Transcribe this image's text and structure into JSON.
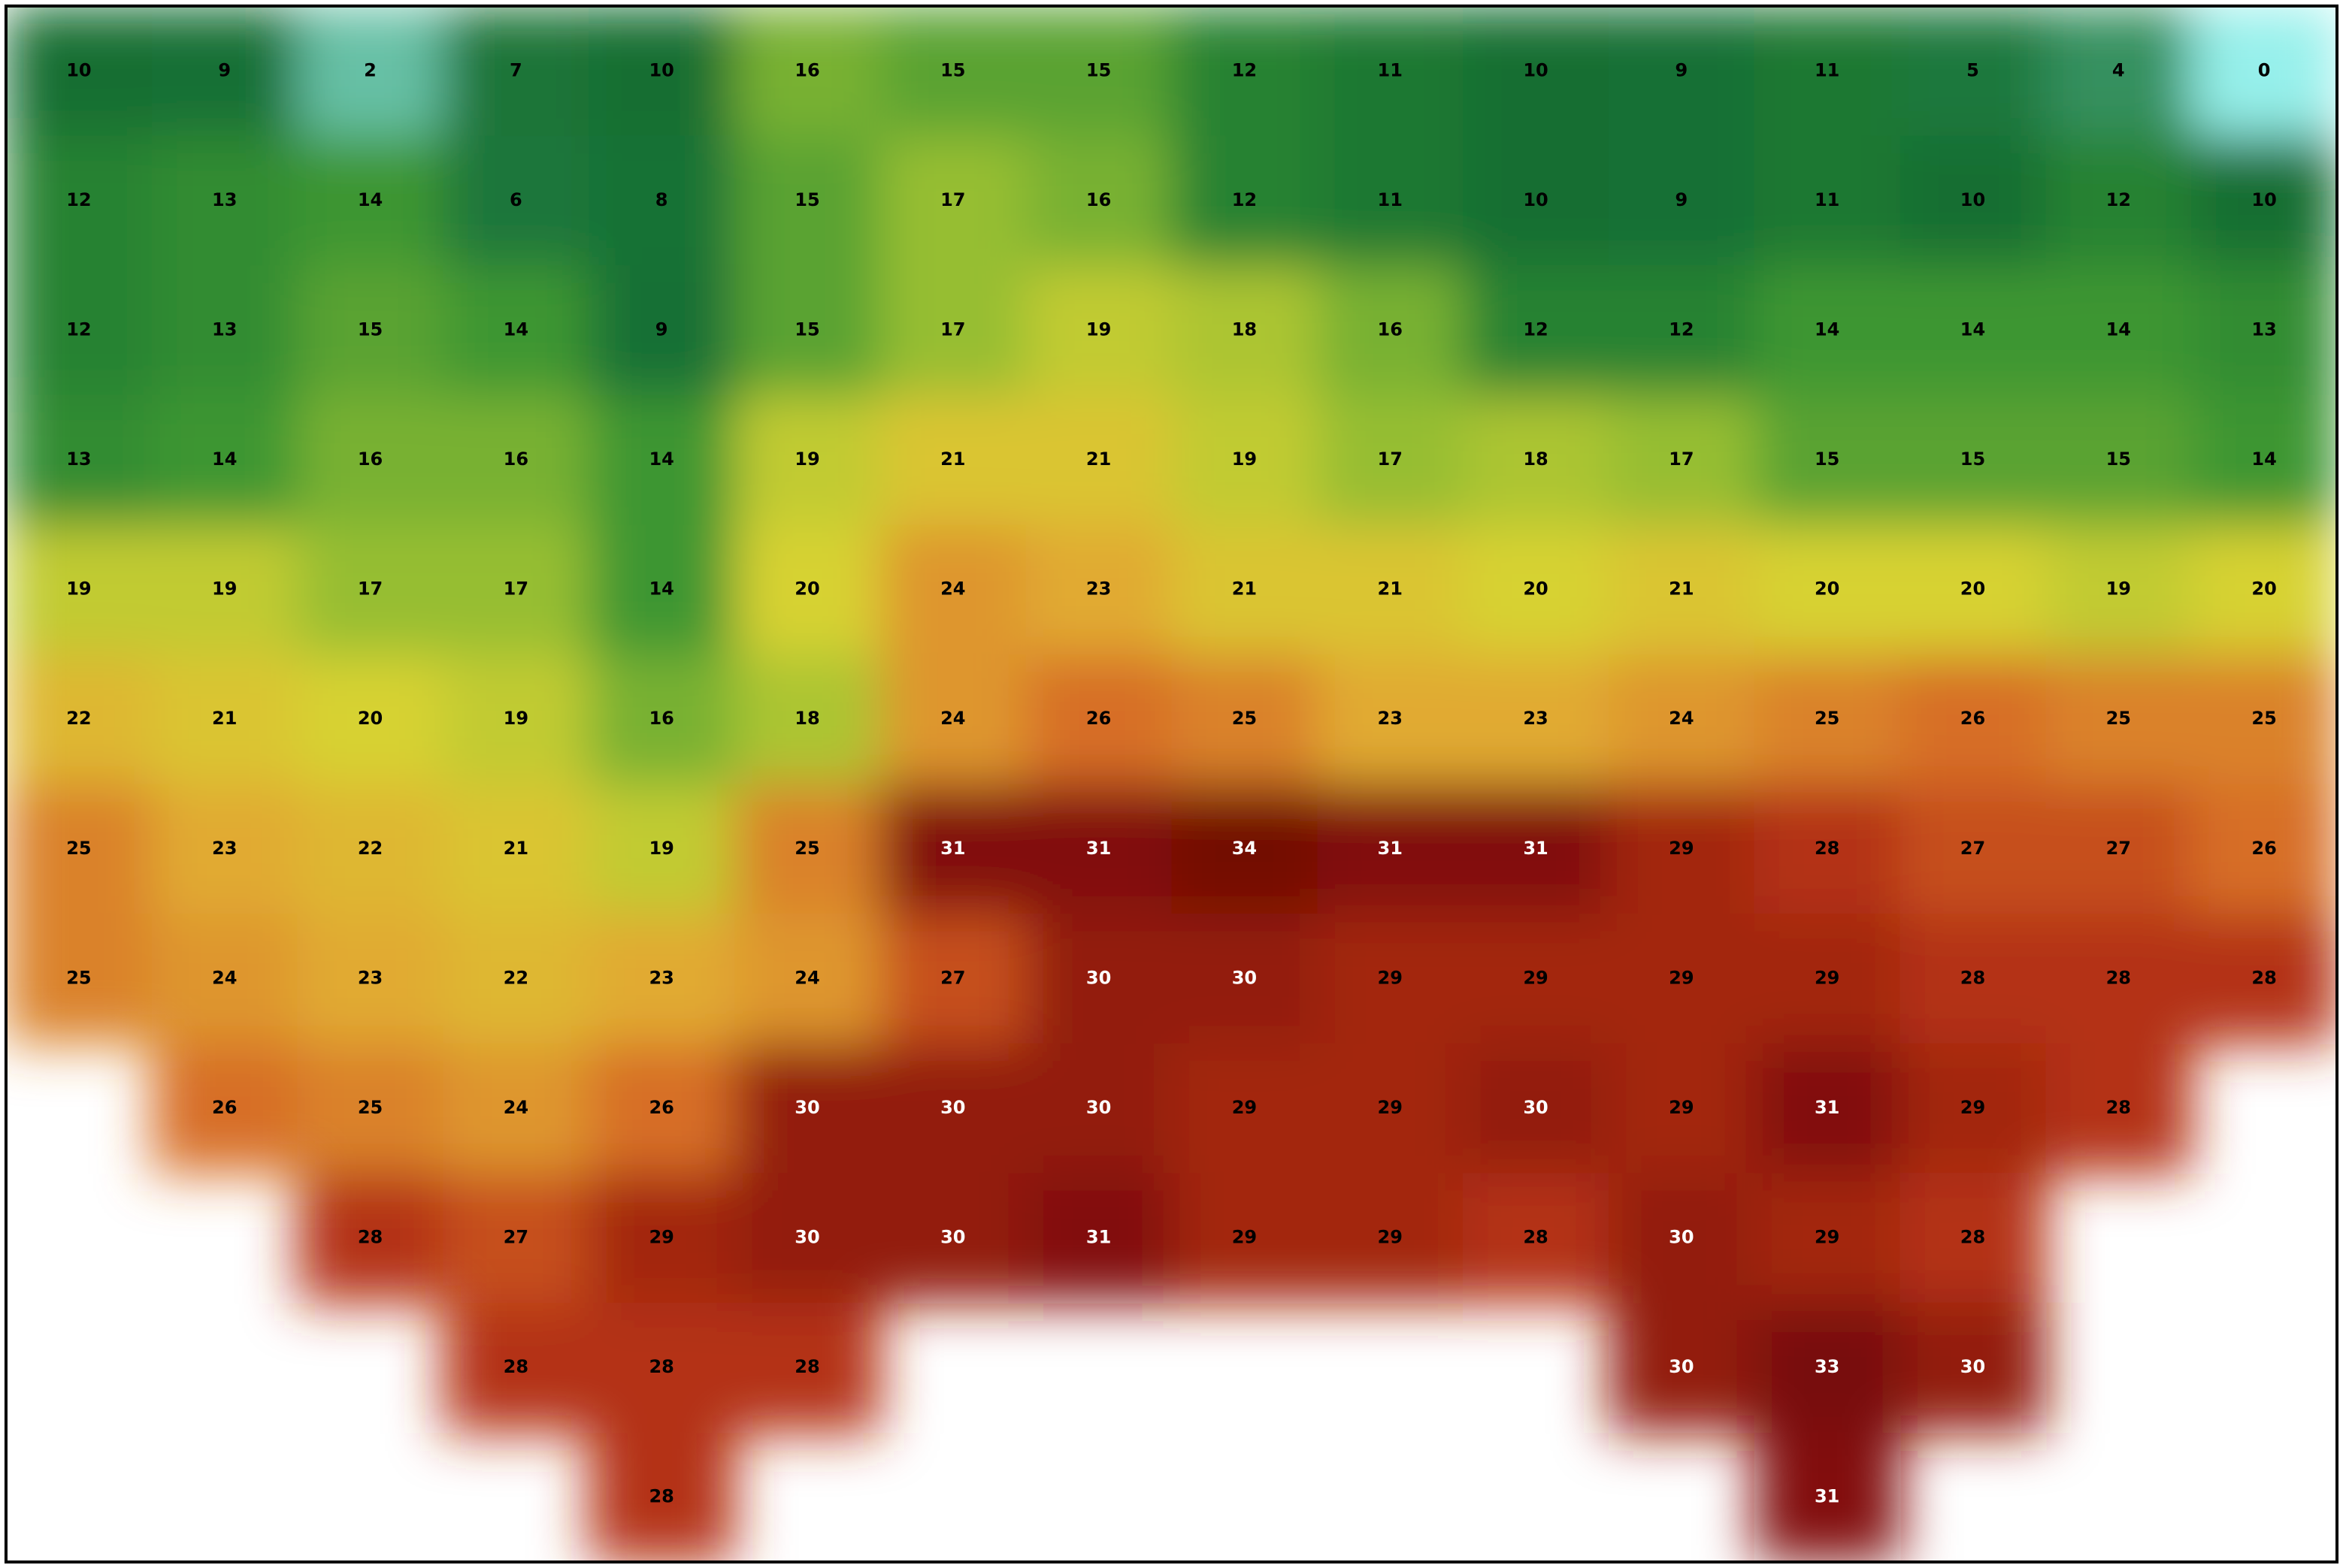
{
  "map": {
    "rows": [
      [
        10,
        9,
        2,
        7,
        10,
        16,
        15,
        15,
        12,
        11,
        10,
        9,
        11,
        5,
        4,
        0
      ],
      [
        12,
        13,
        14,
        6,
        8,
        15,
        17,
        16,
        12,
        11,
        10,
        9,
        11,
        10,
        12,
        10
      ],
      [
        12,
        13,
        15,
        14,
        9,
        15,
        17,
        19,
        18,
        16,
        12,
        12,
        14,
        14,
        14,
        13
      ],
      [
        13,
        14,
        16,
        16,
        14,
        19,
        21,
        21,
        19,
        17,
        18,
        17,
        15,
        15,
        15,
        14
      ],
      [
        19,
        19,
        17,
        17,
        14,
        20,
        24,
        23,
        21,
        21,
        20,
        21,
        20,
        20,
        19,
        20
      ],
      [
        22,
        21,
        20,
        19,
        16,
        18,
        24,
        26,
        25,
        23,
        23,
        24,
        25,
        26,
        25,
        25
      ],
      [
        25,
        23,
        22,
        21,
        19,
        25,
        31,
        31,
        34,
        31,
        31,
        29,
        28,
        27,
        27,
        26
      ],
      [
        25,
        24,
        23,
        22,
        23,
        24,
        27,
        30,
        30,
        29,
        29,
        29,
        29,
        28,
        28,
        28
      ],
      [
        null,
        26,
        25,
        24,
        26,
        30,
        30,
        30,
        29,
        29,
        30,
        29,
        31,
        29,
        28,
        null
      ],
      [
        null,
        null,
        28,
        27,
        29,
        30,
        30,
        31,
        29,
        29,
        28,
        30,
        29,
        28,
        null,
        null
      ],
      [
        null,
        null,
        null,
        28,
        28,
        28,
        null,
        null,
        null,
        null,
        null,
        30,
        33,
        30,
        null,
        null
      ],
      [
        null,
        null,
        null,
        null,
        28,
        null,
        null,
        null,
        null,
        null,
        null,
        null,
        31,
        null,
        null,
        null
      ]
    ]
  }
}
